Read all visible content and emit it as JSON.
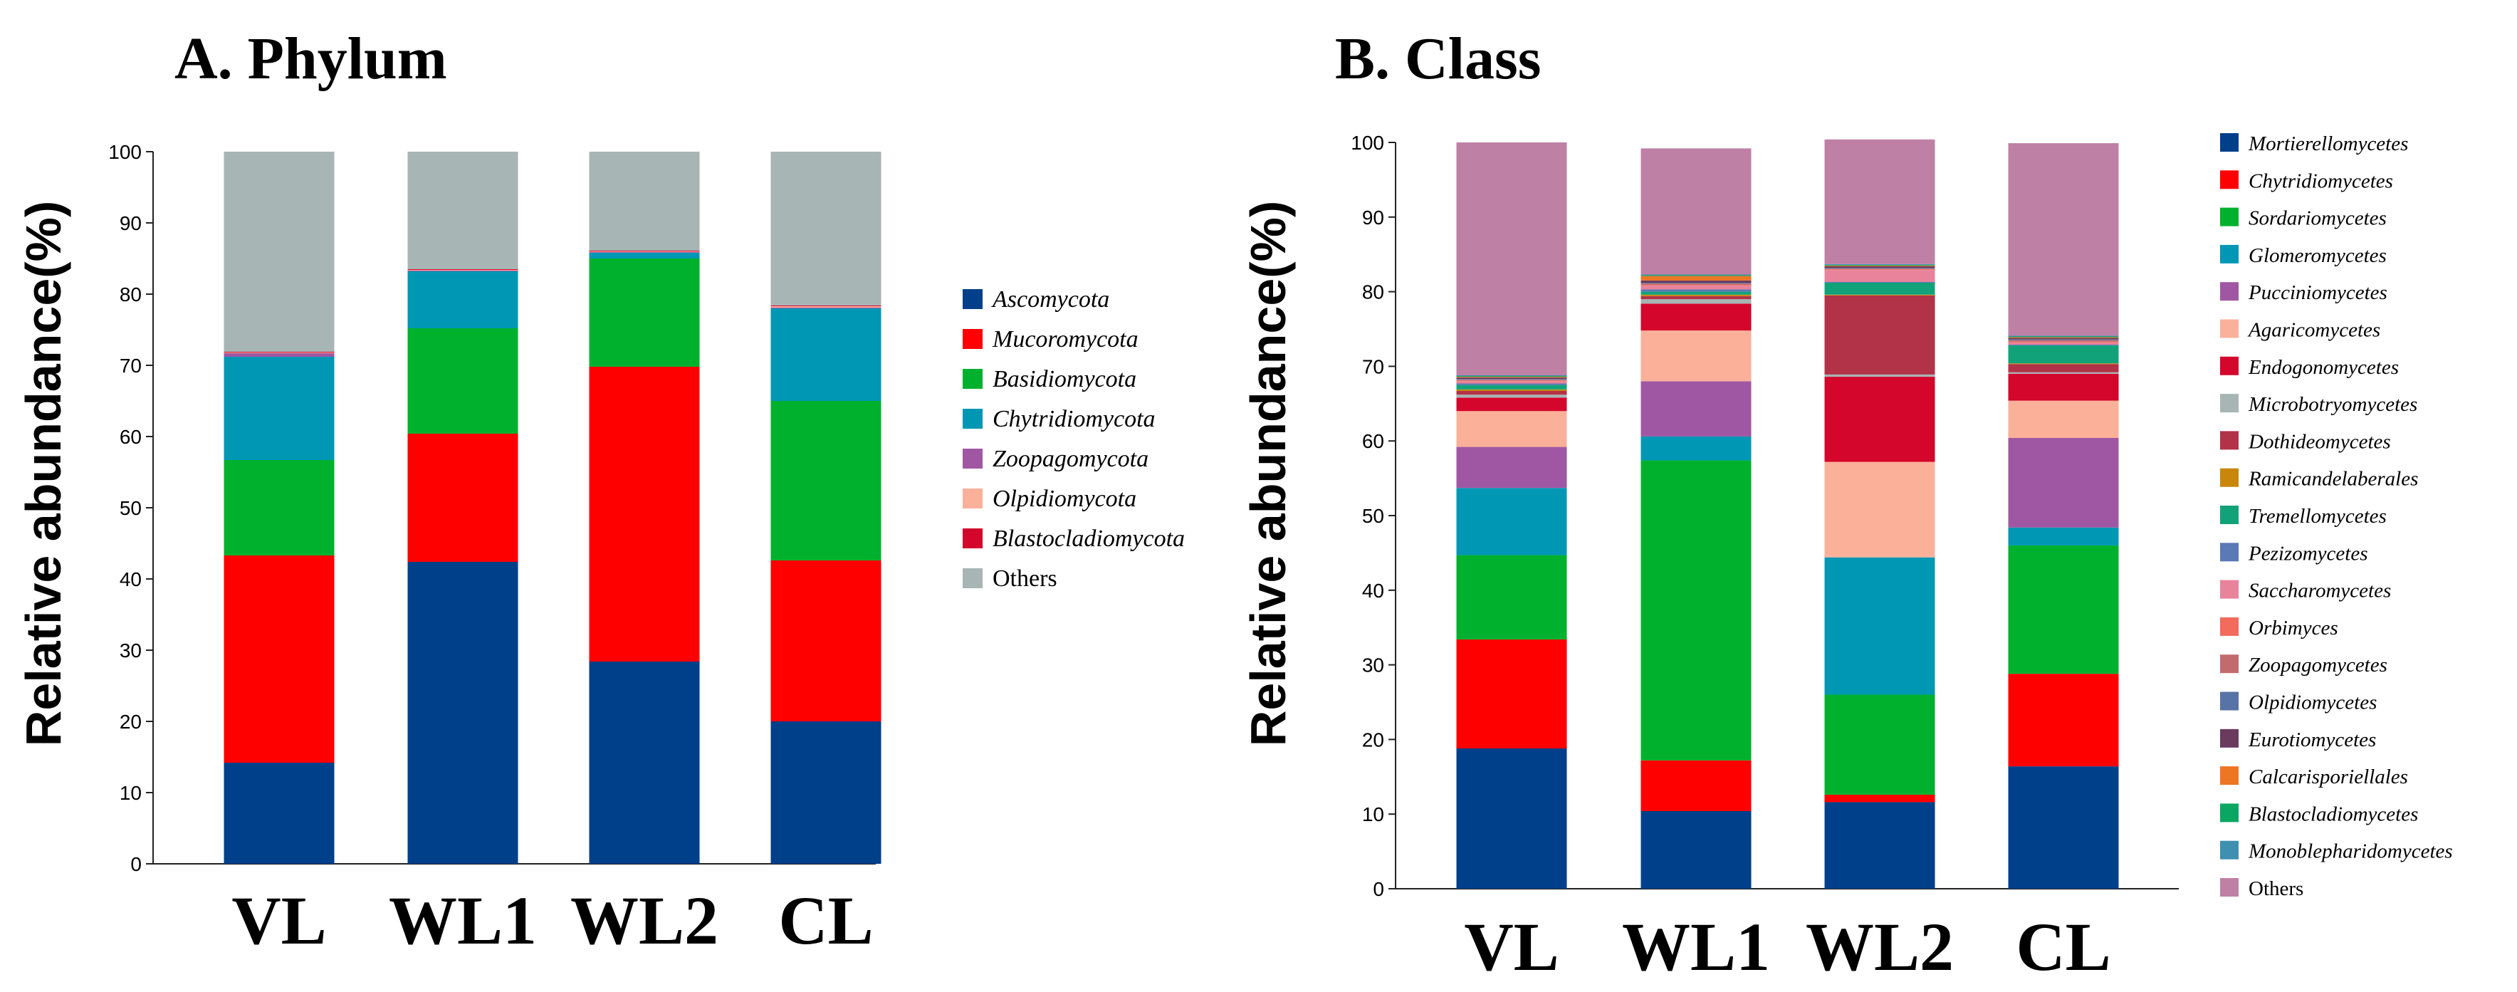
{
  "chart_data": [
    {
      "type": "bar",
      "stacked": true,
      "title": "A. Phylum",
      "xlabel": "",
      "ylabel": "Relative abundance(%)",
      "ylim": [
        0,
        100
      ],
      "yticks": [
        0,
        10,
        20,
        30,
        40,
        50,
        60,
        70,
        80,
        90,
        100
      ],
      "categories": [
        "VL",
        "WL1",
        "WL2",
        "CL"
      ],
      "legend_position": "right",
      "series": [
        {
          "name": "Ascomycota",
          "color": "#003f8a",
          "values": [
            14.2,
            42.4,
            28.4,
            20.0
          ]
        },
        {
          "name": "Mucoromycota",
          "color": "#fe0000",
          "values": [
            29.1,
            18.0,
            41.4,
            22.6
          ]
        },
        {
          "name": "Basidiomycota",
          "color": "#00b12e",
          "values": [
            13.4,
            14.8,
            15.2,
            22.4
          ]
        },
        {
          "name": "Chytridiomycota",
          "color": "#0097b5",
          "values": [
            14.5,
            8.0,
            0.8,
            13.0
          ]
        },
        {
          "name": "Zoopagomycota",
          "color": "#a057a3",
          "values": [
            0.5,
            0.1,
            0.1,
            0.1
          ]
        },
        {
          "name": "Olpidiomycota",
          "color": "#fbb09a",
          "values": [
            0.1,
            0.1,
            0.1,
            0.2
          ]
        },
        {
          "name": "Blastocladiomycota",
          "color": "#d4062b",
          "values": [
            0.1,
            0.1,
            0.1,
            0.1
          ]
        },
        {
          "name": "Others",
          "color": "#a8b5b5",
          "values": [
            28.1,
            16.5,
            13.9,
            21.6
          ]
        }
      ]
    },
    {
      "type": "bar",
      "stacked": true,
      "title": "B. Class",
      "xlabel": "",
      "ylabel": "Relative abundance(%)",
      "ylim": [
        0,
        100
      ],
      "yticks": [
        0,
        10,
        20,
        30,
        40,
        50,
        60,
        70,
        80,
        90,
        100
      ],
      "categories": [
        "VL",
        "WL1",
        "WL2",
        "CL"
      ],
      "legend_position": "right",
      "series": [
        {
          "name": "Mortierellomycetes",
          "color": "#003f8a",
          "values": [
            18.8,
            10.4,
            11.6,
            16.4
          ]
        },
        {
          "name": "Chytridiomycetes",
          "color": "#fe0000",
          "values": [
            14.6,
            6.8,
            1.0,
            12.4
          ]
        },
        {
          "name": "Sordariomycetes",
          "color": "#00b12e",
          "values": [
            11.3,
            40.2,
            13.4,
            17.2
          ]
        },
        {
          "name": "Glomeromycetes",
          "color": "#0097b5",
          "values": [
            9.0,
            3.2,
            18.4,
            2.4
          ]
        },
        {
          "name": "Pucciniomycetes",
          "color": "#a057a3",
          "values": [
            5.5,
            7.4,
            0.0,
            12.0
          ]
        },
        {
          "name": "Agaricomycetes",
          "color": "#fbb09a",
          "values": [
            4.8,
            6.8,
            12.8,
            5.0
          ]
        },
        {
          "name": "Endogonomycetes",
          "color": "#d4062b",
          "values": [
            1.8,
            3.6,
            11.4,
            3.6
          ]
        },
        {
          "name": "Microbotryomycetes",
          "color": "#a8b5b5",
          "values": [
            0.4,
            0.6,
            0.3,
            0.2
          ]
        },
        {
          "name": "Dothideomycetes",
          "color": "#b23248",
          "values": [
            0.5,
            0.4,
            10.6,
            1.1
          ]
        },
        {
          "name": "Ramicandelaberales",
          "color": "#c8860b",
          "values": [
            0.2,
            0.2,
            0.1,
            0.1
          ]
        },
        {
          "name": "Tremellomycetes",
          "color": "#12a27a",
          "values": [
            0.6,
            0.4,
            1.6,
            2.4
          ]
        },
        {
          "name": "Pezizomycetes",
          "color": "#5b79b5",
          "values": [
            0.2,
            0.3,
            0.1,
            0.1
          ]
        },
        {
          "name": "Saccharomycetes",
          "color": "#e8839b",
          "values": [
            0.3,
            0.5,
            1.6,
            0.3
          ]
        },
        {
          "name": "Orbimyces",
          "color": "#f26b5b",
          "values": [
            0.1,
            0.1,
            0.1,
            0.1
          ]
        },
        {
          "name": "Zoopagomycetes",
          "color": "#c26b6e",
          "values": [
            0.1,
            0.2,
            0.1,
            0.2
          ]
        },
        {
          "name": "Olpidiomycetes",
          "color": "#5873a6",
          "values": [
            0.1,
            0.1,
            0.1,
            0.1
          ]
        },
        {
          "name": "Eurotiomycetes",
          "color": "#6a3b5e",
          "values": [
            0.2,
            0.3,
            0.2,
            0.2
          ]
        },
        {
          "name": "Calcarisporiellales",
          "color": "#ee7623",
          "values": [
            0.1,
            0.6,
            0.1,
            0.1
          ]
        },
        {
          "name": "Blastocladiomycetes",
          "color": "#0aa762",
          "values": [
            0.1,
            0.1,
            0.1,
            0.1
          ]
        },
        {
          "name": "Monoblepharidomycetes",
          "color": "#3e8fb0",
          "values": [
            0.1,
            0.1,
            0.1,
            0.1
          ]
        },
        {
          "name": "Others",
          "color": "#bf80a5",
          "values": [
            31.2,
            16.9,
            16.7,
            25.8
          ]
        }
      ]
    }
  ]
}
